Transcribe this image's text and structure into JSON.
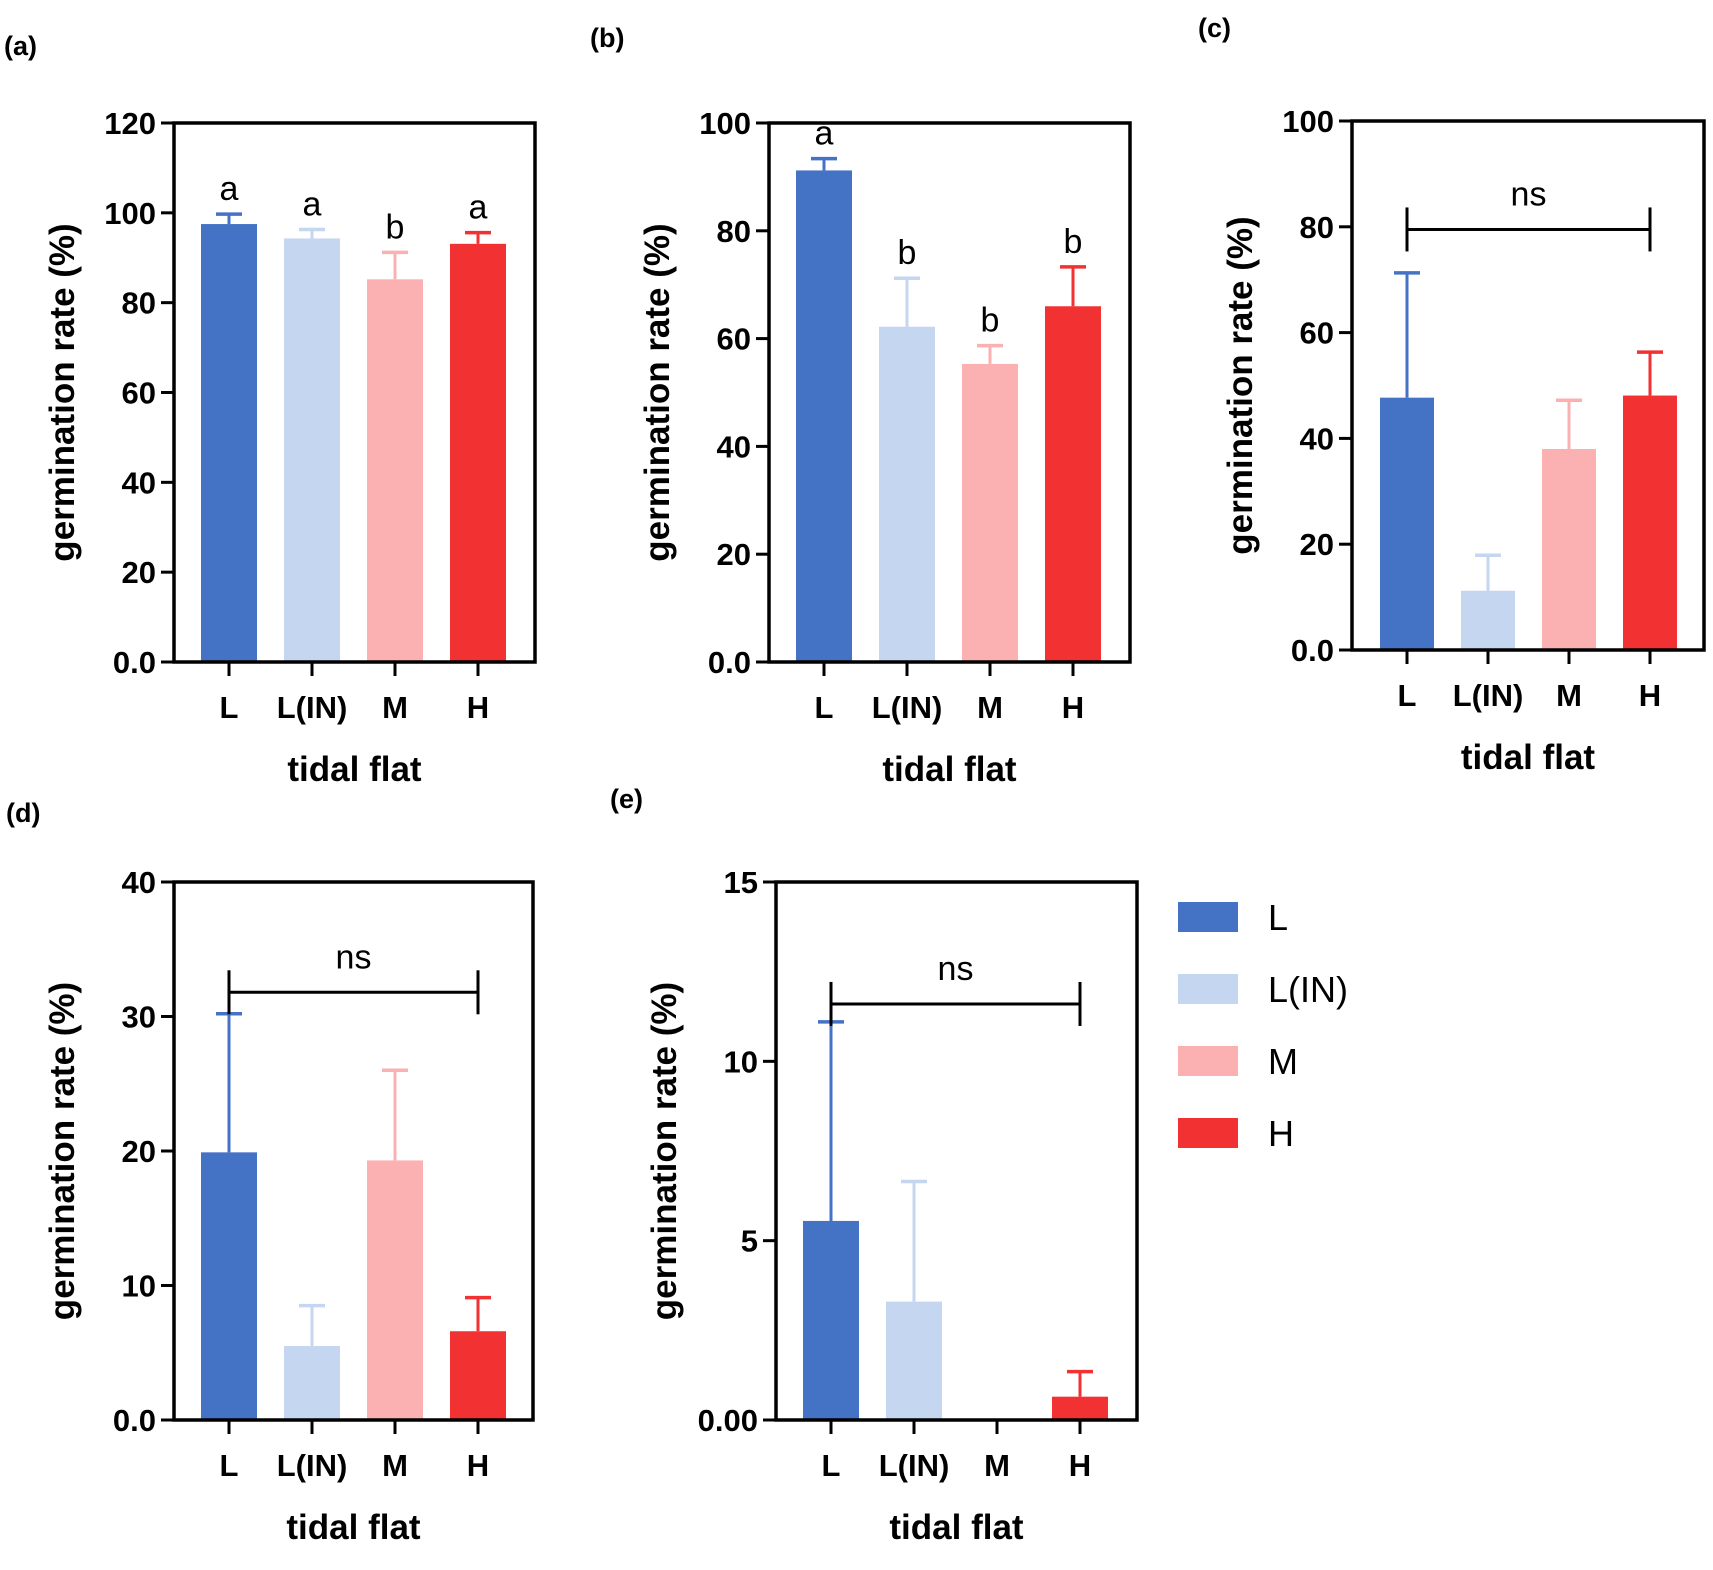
{
  "colors": {
    "L": "#4472c4",
    "L(IN)": "#c5d6f1",
    "M": "#fbb1b1",
    "H": "#f23232"
  },
  "legend": {
    "items": [
      "L",
      "L(IN)",
      "M",
      "H"
    ]
  },
  "chart_data": [
    {
      "panel": "(a)",
      "type": "bar",
      "categories": [
        "L",
        "L(IN)",
        "M",
        "H"
      ],
      "values": [
        97.5,
        94.3,
        85.2,
        93.1
      ],
      "errors": [
        2.2,
        2.0,
        6.0,
        2.5
      ],
      "sig_labels": [
        "a",
        "a",
        "b",
        "a"
      ],
      "ns": false,
      "ylim": [
        0,
        120
      ],
      "ticks": [
        0,
        20,
        40,
        60,
        80,
        100,
        120
      ],
      "tick_labels": [
        "0.0",
        "20",
        "40",
        "60",
        "80",
        "100",
        "120"
      ],
      "xlabel": "tidal flat",
      "ylabel": "germination rate (%)"
    },
    {
      "panel": "(b)",
      "type": "bar",
      "categories": [
        "L",
        "L(IN)",
        "M",
        "H"
      ],
      "values": [
        91.2,
        62.2,
        55.3,
        66.0
      ],
      "errors": [
        2.2,
        9.0,
        3.4,
        7.3
      ],
      "sig_labels": [
        "a",
        "b",
        "b",
        "b"
      ],
      "ns": false,
      "ylim": [
        0,
        100
      ],
      "ticks": [
        0,
        20,
        40,
        60,
        80,
        100
      ],
      "tick_labels": [
        "0.0",
        "20",
        "40",
        "60",
        "80",
        "100"
      ],
      "xlabel": "tidal flat",
      "ylabel": "germination rate (%)"
    },
    {
      "panel": "(c)",
      "type": "bar",
      "categories": [
        "L",
        "L(IN)",
        "M",
        "H"
      ],
      "values": [
        47.7,
        11.2,
        38.0,
        48.1
      ],
      "errors": [
        23.6,
        6.7,
        9.2,
        8.2
      ],
      "sig_labels": [],
      "ns": true,
      "ns_label": "ns",
      "ns_y": 79.5,
      "ylim": [
        0,
        100
      ],
      "ticks": [
        0,
        20,
        40,
        60,
        80,
        100
      ],
      "tick_labels": [
        "0.0",
        "20",
        "40",
        "60",
        "80",
        "100"
      ],
      "xlabel": "tidal flat",
      "ylabel": "germination rate (%)"
    },
    {
      "panel": "(d)",
      "type": "bar",
      "categories": [
        "L",
        "L(IN)",
        "M",
        "H"
      ],
      "values": [
        19.9,
        5.5,
        19.3,
        6.6
      ],
      "errors": [
        10.3,
        3.0,
        6.7,
        2.5
      ],
      "sig_labels": [],
      "ns": true,
      "ns_label": "ns",
      "ns_y": 31.8,
      "ylim": [
        0,
        40
      ],
      "ticks": [
        0,
        10,
        20,
        30,
        40
      ],
      "tick_labels": [
        "0.0",
        "10",
        "20",
        "30",
        "40"
      ],
      "xlabel": "tidal flat",
      "ylabel": "germination rate (%)"
    },
    {
      "panel": "(e)",
      "type": "bar",
      "categories": [
        "L",
        "L(IN)",
        "M",
        "H"
      ],
      "values": [
        5.55,
        3.3,
        0,
        0.65
      ],
      "errors": [
        5.55,
        3.35,
        0,
        0.7
      ],
      "sig_labels": [],
      "ns": true,
      "ns_label": "ns",
      "ns_y": 11.6,
      "ylim": [
        0,
        15
      ],
      "ticks": [
        0,
        5,
        10,
        15
      ],
      "tick_labels": [
        "0.00",
        "5",
        "10",
        "15"
      ],
      "xlabel": "tidal flat",
      "ylabel": "germination rate (%)"
    }
  ]
}
